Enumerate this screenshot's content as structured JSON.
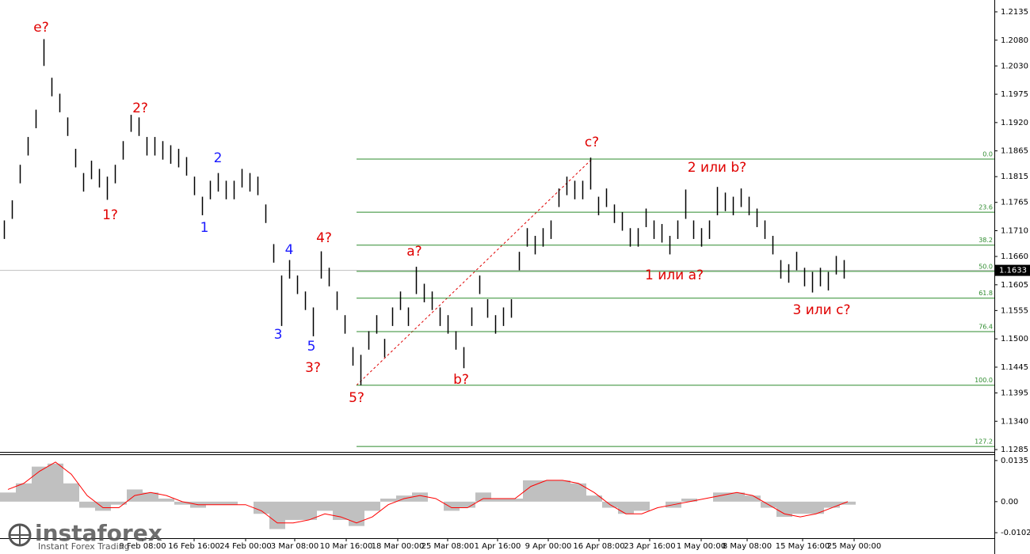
{
  "chart_data": [
    {
      "type": "hilo",
      "color": "#000000",
      "xlim": [
        -0.5,
        125
      ],
      "ylim": [
        1.1282,
        1.2158
      ],
      "yticks": [
        {
          "value": 1.2135,
          "label": "1.2135"
        },
        {
          "value": 1.208,
          "label": "1.2080"
        },
        {
          "value": 1.203,
          "label": "1.2030"
        },
        {
          "value": 1.1975,
          "label": "1.1975"
        },
        {
          "value": 1.192,
          "label": "1.1920"
        },
        {
          "value": 1.1865,
          "label": "1.1865"
        },
        {
          "value": 1.1815,
          "label": "1.1815"
        },
        {
          "value": 1.1765,
          "label": "1.1765"
        },
        {
          "value": 1.171,
          "label": "1.1710"
        },
        {
          "value": 1.166,
          "label": "1.1660"
        },
        {
          "value": 1.1605,
          "label": "1.1605"
        },
        {
          "value": 1.1555,
          "label": "1.1555"
        },
        {
          "value": 1.15,
          "label": "1.1500"
        },
        {
          "value": 1.1445,
          "label": "1.1445"
        },
        {
          "value": 1.1395,
          "label": "1.1395"
        },
        {
          "value": 1.134,
          "label": "1.1340"
        },
        {
          "value": 1.1285,
          "label": "1.1285"
        }
      ],
      "xticks": [
        {
          "value": 17.5,
          "label": "9 Feb 08:00"
        },
        {
          "value": 24,
          "label": "16 Feb 16:00"
        },
        {
          "value": 30.5,
          "label": "24 Feb 00:00"
        },
        {
          "value": 36.7,
          "label": "3 Mar 08:00"
        },
        {
          "value": 43.2,
          "label": "10 Mar 16:00"
        },
        {
          "value": 49.7,
          "label": "18 Mar 00:00"
        },
        {
          "value": 56,
          "label": "25 Mar 08:00"
        },
        {
          "value": 62.3,
          "label": "1 Apr 16:00"
        },
        {
          "value": 68.7,
          "label": "9 Apr 00:00"
        },
        {
          "value": 75.1,
          "label": "16 Apr 08:00"
        },
        {
          "value": 81.5,
          "label": "23 Apr 16:00"
        },
        {
          "value": 88,
          "label": "1 May 00:00"
        },
        {
          "value": 93.8,
          "label": "8 May 08:00"
        },
        {
          "value": 100.8,
          "label": "15 May 16:00"
        },
        {
          "value": 107.3,
          "label": "25 May 00:00"
        }
      ],
      "high": [
        1.173,
        1.1769,
        1.1838,
        1.1892,
        1.1945,
        1.2082,
        1.2007,
        1.1976,
        1.193,
        1.1869,
        1.1822,
        1.1846,
        1.183,
        1.1815,
        1.1838,
        1.1884,
        1.1935,
        1.193,
        1.1892,
        1.1892,
        1.1884,
        1.1876,
        1.1869,
        1.1853,
        1.1815,
        1.1776,
        1.1807,
        1.1822,
        1.1807,
        1.1807,
        1.183,
        1.1822,
        1.1815,
        1.1761,
        1.1684,
        1.1623,
        1.1653,
        1.1623,
        1.1592,
        1.1561,
        1.167,
        1.1638,
        1.1592,
        1.1546,
        1.1484,
        1.1469,
        1.1515,
        1.1546,
        1.15,
        1.1561,
        1.1592,
        1.1561,
        1.164,
        1.1607,
        1.1592,
        1.1561,
        1.1546,
        1.1515,
        1.1484,
        1.1561,
        1.1623,
        1.1577,
        1.1546,
        1.1561,
        1.1577,
        1.1669,
        1.1715,
        1.17,
        1.1715,
        1.173,
        1.1792,
        1.1815,
        1.1807,
        1.1807,
        1.1852,
        1.1776,
        1.1792,
        1.1761,
        1.1746,
        1.1715,
        1.1715,
        1.1753,
        1.173,
        1.1723,
        1.17,
        1.173,
        1.179,
        1.173,
        1.1715,
        1.173,
        1.1795,
        1.1784,
        1.1776,
        1.1792,
        1.1776,
        1.1753,
        1.173,
        1.17,
        1.1653,
        1.1645,
        1.1669,
        1.1638,
        1.163,
        1.1638,
        1.163,
        1.1661,
        1.1653
      ],
      "low": [
        1.1694,
        1.1733,
        1.1802,
        1.1856,
        1.1909,
        1.203,
        1.1971,
        1.194,
        1.1894,
        1.1833,
        1.1786,
        1.181,
        1.1794,
        1.177,
        1.1802,
        1.1848,
        1.1902,
        1.1894,
        1.1856,
        1.1856,
        1.1848,
        1.184,
        1.1833,
        1.1817,
        1.1779,
        1.174,
        1.1771,
        1.1786,
        1.1771,
        1.1771,
        1.1794,
        1.1786,
        1.1779,
        1.1725,
        1.1648,
        1.1525,
        1.1617,
        1.1587,
        1.1556,
        1.1505,
        1.1617,
        1.1602,
        1.1556,
        1.151,
        1.1448,
        1.141,
        1.1479,
        1.151,
        1.1464,
        1.1525,
        1.1556,
        1.1525,
        1.1587,
        1.1571,
        1.1556,
        1.1525,
        1.151,
        1.1479,
        1.1443,
        1.1525,
        1.1587,
        1.1541,
        1.151,
        1.1525,
        1.1541,
        1.1633,
        1.1679,
        1.1664,
        1.1679,
        1.1694,
        1.1756,
        1.1779,
        1.1771,
        1.1771,
        1.179,
        1.174,
        1.1756,
        1.1725,
        1.171,
        1.1679,
        1.1679,
        1.1717,
        1.1694,
        1.1687,
        1.1664,
        1.1694,
        1.1733,
        1.1694,
        1.1679,
        1.1694,
        1.174,
        1.1748,
        1.174,
        1.1756,
        1.174,
        1.1717,
        1.1694,
        1.1664,
        1.1617,
        1.1609,
        1.1633,
        1.1602,
        1.159,
        1.1602,
        1.1594,
        1.1625,
        1.1617
      ],
      "fib_color": "#2e8b2e",
      "fib_levels": [
        {
          "label": "0.0",
          "value": 1.1849
        },
        {
          "label": "23.6",
          "value": 1.1746
        },
        {
          "label": "38.2",
          "value": 1.1682
        },
        {
          "label": "50.0",
          "value": 1.1631
        },
        {
          "label": "61.8",
          "value": 1.1579
        },
        {
          "label": "76.4",
          "value": 1.1514
        },
        {
          "label": "100.0",
          "value": 1.141
        },
        {
          "label": "127.2",
          "value": 1.1291
        }
      ],
      "current_price": {
        "value": 1.1633,
        "label": "1.1633"
      },
      "annotations": [
        {
          "text": "e?",
          "color": "#e00000"
        },
        {
          "text": "2?",
          "color": "#e00000"
        },
        {
          "text": "1?",
          "color": "#e00000"
        },
        {
          "text": "2",
          "color": "#1a1aff"
        },
        {
          "text": "1",
          "color": "#1a1aff"
        },
        {
          "text": "4",
          "color": "#1a1aff"
        },
        {
          "text": "4?",
          "color": "#e00000"
        },
        {
          "text": "3",
          "color": "#1a1aff"
        },
        {
          "text": "5",
          "color": "#1a1aff"
        },
        {
          "text": "3?",
          "color": "#e00000"
        },
        {
          "text": "5?",
          "color": "#e00000"
        },
        {
          "text": "a?",
          "color": "#e00000"
        },
        {
          "text": "b?",
          "color": "#e00000"
        },
        {
          "text": "c?",
          "color": "#e00000"
        },
        {
          "text": "2 или b?",
          "color": "#e00000"
        },
        {
          "text": "1 или a?",
          "color": "#e00000"
        },
        {
          "text": "3 или c?",
          "color": "#e00000"
        }
      ]
    },
    {
      "type": "oscillator",
      "xlim": [
        -0.5,
        62.25
      ],
      "ylim": [
        -0.012,
        0.0153
      ],
      "yticks": [
        {
          "value": 0.0135,
          "label": "0.0135"
        },
        {
          "value": 0,
          "label": "0.00"
        },
        {
          "value": -0.0102,
          "label": "-0.0102"
        }
      ],
      "histogram": {
        "color": "#c0c0c0",
        "values": [
          0.003,
          0.006,
          0.0115,
          0.0125,
          0.006,
          -0.002,
          -0.003,
          -0.001,
          0.004,
          0.003,
          0.001,
          -0.001,
          -0.002,
          -0.001,
          -0.001,
          0.0,
          -0.004,
          -0.009,
          -0.006,
          -0.006,
          -0.003,
          -0.006,
          -0.008,
          -0.003,
          0.001,
          0.002,
          0.003,
          0.0,
          -0.003,
          -0.002,
          0.003,
          0.001,
          0.001,
          0.007,
          0.007,
          0.007,
          0.006,
          0.002,
          -0.002,
          -0.004,
          -0.003,
          0.0,
          -0.002,
          0.001,
          0.0,
          0.003,
          0.003,
          0.002,
          -0.002,
          -0.005,
          -0.004,
          -0.004,
          -0.002,
          -0.001
        ]
      },
      "signal": {
        "color": "#ff0000",
        "values": [
          0.004,
          0.006,
          0.01,
          0.013,
          0.009,
          0.002,
          -0.002,
          -0.002,
          0.002,
          0.003,
          0.002,
          0.0,
          -0.001,
          -0.001,
          -0.001,
          -0.001,
          -0.003,
          -0.007,
          -0.007,
          -0.006,
          -0.004,
          -0.005,
          -0.007,
          -0.005,
          -0.001,
          0.001,
          0.002,
          0.001,
          -0.002,
          -0.002,
          0.001,
          0.001,
          0.001,
          0.005,
          0.007,
          0.007,
          0.006,
          0.003,
          -0.001,
          -0.004,
          -0.004,
          -0.002,
          -0.001,
          0.0,
          0.001,
          0.002,
          0.003,
          0.002,
          -0.001,
          -0.004,
          -0.005,
          -0.004,
          -0.002,
          0.0
        ]
      }
    }
  ],
  "watermark": {
    "brand": "instaforex",
    "tagline": "Instant Forex Trading"
  }
}
